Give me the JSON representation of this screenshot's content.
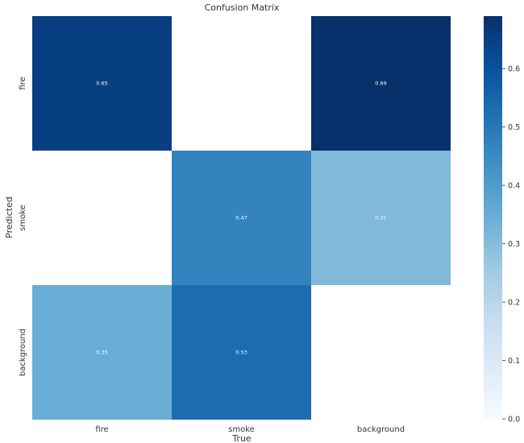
{
  "chart_data": {
    "type": "heatmap",
    "title": "Confusion Matrix",
    "xlabel": "True",
    "ylabel": "Predicted",
    "x_categories": [
      "fire",
      "smoke",
      "background"
    ],
    "y_categories": [
      "fire",
      "smoke",
      "background"
    ],
    "values": [
      [
        0.65,
        null,
        0.69
      ],
      [
        null,
        0.47,
        0.31
      ],
      [
        0.35,
        0.53,
        null
      ]
    ],
    "value_labels": [
      [
        "0.65",
        "",
        "0.69"
      ],
      [
        "",
        "0.47",
        "0.31"
      ],
      [
        "0.35",
        "0.53",
        ""
      ]
    ],
    "colormap": "Blues",
    "vmin": 0.0,
    "vmax": 0.69,
    "colorbar_ticks": [
      0.0,
      0.1,
      0.2,
      0.3,
      0.4,
      0.5,
      0.6
    ],
    "colorbar_tick_labels": [
      "0.0",
      "0.1",
      "0.2",
      "0.3",
      "0.4",
      "0.5",
      "0.6"
    ]
  }
}
